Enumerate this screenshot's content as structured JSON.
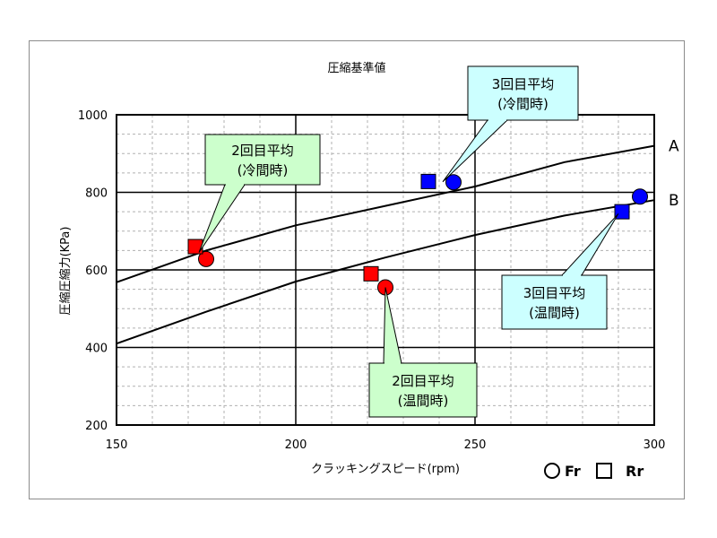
{
  "chart_data": {
    "type": "scatter",
    "title": "圧縮基準値",
    "xlabel": "クラッキングスピード(rpm)",
    "ylabel": "圧縮圧縮力(KPa)",
    "xlim": [
      150,
      300
    ],
    "ylim": [
      200,
      1000
    ],
    "x_ticks": [
      "150",
      "200",
      "250",
      "300"
    ],
    "y_ticks": [
      "200",
      "400",
      "600",
      "800",
      "1000"
    ],
    "grid": "major gridlines on both axes, dashed minor gridlines",
    "curves": [
      {
        "name": "A",
        "x": [
          150,
          175,
          200,
          225,
          250,
          275,
          300
        ],
        "y": [
          568,
          650,
          715,
          765,
          815,
          878,
          920
        ]
      },
      {
        "name": "B",
        "x": [
          150,
          175,
          200,
          225,
          250,
          275,
          300
        ],
        "y": [
          410,
          492,
          570,
          632,
          690,
          740,
          780
        ]
      }
    ],
    "series": [
      {
        "name": "Fr",
        "shape": "circle",
        "color": "#ff0000",
        "x": [
          175
        ],
        "y": [
          628
        ]
      },
      {
        "name": "Rr",
        "shape": "square",
        "color": "#ff0000",
        "x": [
          172
        ],
        "y": [
          660
        ]
      },
      {
        "name": "Fr",
        "shape": "circle",
        "color": "#ff0000",
        "x": [
          225
        ],
        "y": [
          555
        ]
      },
      {
        "name": "Rr",
        "shape": "square",
        "color": "#ff0000",
        "x": [
          221
        ],
        "y": [
          590
        ]
      },
      {
        "name": "Fr",
        "shape": "circle",
        "color": "#0000ff",
        "x": [
          244
        ],
        "y": [
          826
        ]
      },
      {
        "name": "Rr",
        "shape": "square",
        "color": "#0000ff",
        "x": [
          237
        ],
        "y": [
          828
        ]
      },
      {
        "name": "Fr",
        "shape": "circle",
        "color": "#0000ff",
        "x": [
          296
        ],
        "y": [
          789
        ]
      },
      {
        "name": "Rr",
        "shape": "square",
        "color": "#0000ff",
        "x": [
          291
        ],
        "y": [
          750
        ]
      }
    ],
    "callouts": [
      {
        "line1": "2回目平均",
        "line2": "(冷間時)",
        "color": "#ccffcc",
        "target_x": 173,
        "target_y": 645
      },
      {
        "line1": "2回目平均",
        "line2": "(温間時)",
        "color": "#ccffcc",
        "target_x": 225,
        "target_y": 555
      },
      {
        "line1": "3回目平均",
        "line2": "(冷間時)",
        "color": "#ccffff",
        "target_x": 241,
        "target_y": 827
      },
      {
        "line1": "3回目平均",
        "line2": "(温間時)",
        "color": "#ccffff",
        "target_x": 290,
        "target_y": 745
      }
    ],
    "legend": {
      "position": "bottom-right",
      "entries": [
        {
          "shape": "circle",
          "label": "Fr"
        },
        {
          "shape": "square",
          "label": "Rr"
        }
      ]
    },
    "colors": {
      "cold_warm_2nd": "#ff0000",
      "3rd": "#0000ff",
      "green_callout": "#ccffcc",
      "cyan_callout": "#ccffff"
    }
  }
}
